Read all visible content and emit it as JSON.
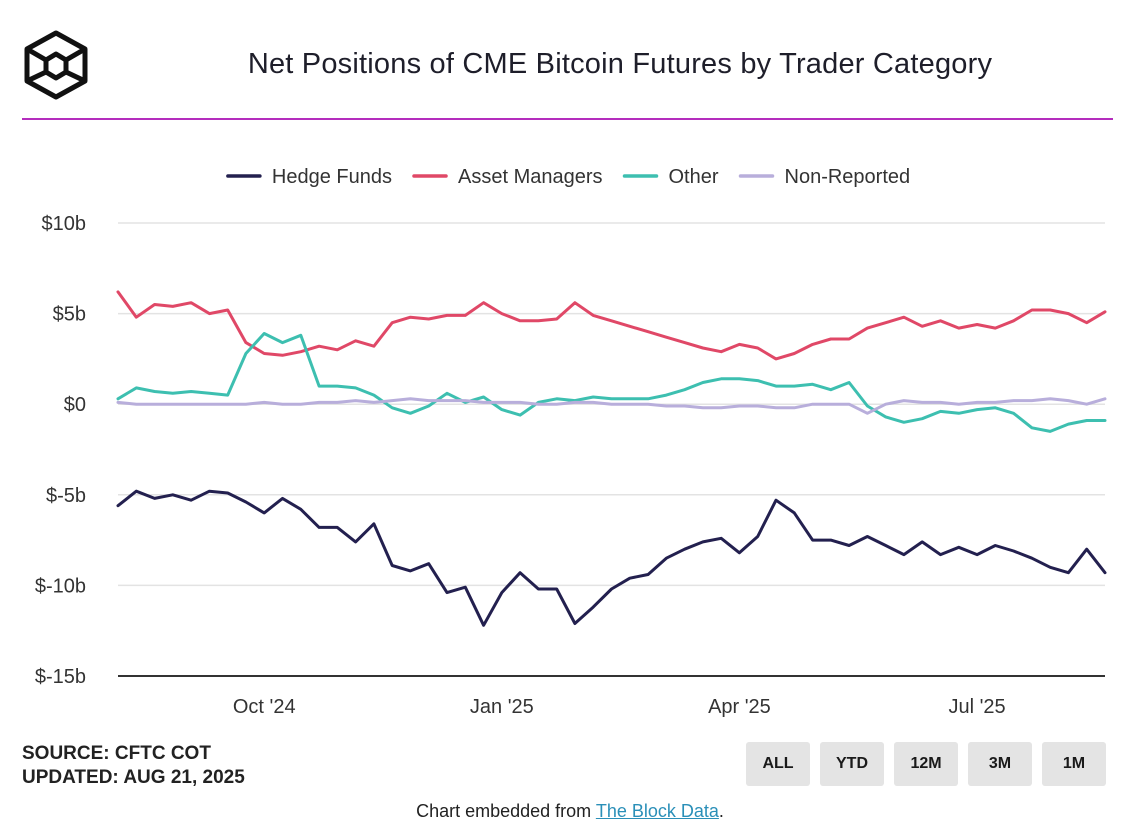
{
  "header": {
    "title": "Net Positions of CME Bitcoin Futures by Trader Category"
  },
  "chart_data": {
    "type": "line",
    "title": "Net Positions of CME Bitcoin Futures by Trader Category",
    "xlabel": "",
    "ylabel": "",
    "ylim": [
      -15,
      10
    ],
    "y_ticks": [
      10,
      5,
      0,
      -5,
      -10,
      -15
    ],
    "y_tick_labels": [
      "$10b",
      "$5b",
      "$0",
      "$-5b",
      "$-10b",
      "$-15b"
    ],
    "x_tick_labels": [
      "Oct '24",
      "Jan '25",
      "Apr '25",
      "Jul '25"
    ],
    "x_tick_positions": [
      8,
      21,
      34,
      47
    ],
    "legend_position": "top-center",
    "grid": true,
    "x_count": 55,
    "series": [
      {
        "name": "Hedge Funds",
        "color": "#23204f",
        "values": [
          -5.6,
          -4.8,
          -5.2,
          -5.0,
          -5.3,
          -4.8,
          -4.9,
          -5.4,
          -6.0,
          -5.2,
          -5.8,
          -6.8,
          -6.8,
          -7.6,
          -6.6,
          -8.9,
          -9.2,
          -8.8,
          -10.4,
          -10.1,
          -12.2,
          -10.4,
          -9.3,
          -10.2,
          -10.2,
          -12.1,
          -11.2,
          -10.2,
          -9.6,
          -9.4,
          -8.5,
          -8.0,
          -7.6,
          -7.4,
          -8.2,
          -7.3,
          -5.3,
          -6.0,
          -7.5,
          -7.5,
          -7.8,
          -7.3,
          -7.8,
          -8.3,
          -7.6,
          -8.3,
          -7.9,
          -8.3,
          -7.8,
          -8.1,
          -8.5,
          -9.0,
          -9.3,
          -8.0,
          -9.3
        ]
      },
      {
        "name": "Asset Managers",
        "color": "#e04867",
        "values": [
          6.2,
          4.8,
          5.5,
          5.4,
          5.6,
          5.0,
          5.2,
          3.4,
          2.8,
          2.7,
          2.9,
          3.2,
          3.0,
          3.5,
          3.2,
          4.5,
          4.8,
          4.7,
          4.9,
          4.9,
          5.6,
          5.0,
          4.6,
          4.6,
          4.7,
          5.6,
          4.9,
          4.6,
          4.3,
          4.0,
          3.7,
          3.4,
          3.1,
          2.9,
          3.3,
          3.1,
          2.5,
          2.8,
          3.3,
          3.6,
          3.6,
          4.2,
          4.5,
          4.8,
          4.3,
          4.6,
          4.2,
          4.4,
          4.2,
          4.6,
          5.2,
          5.2,
          5.0,
          4.5,
          5.1
        ]
      },
      {
        "name": "Other",
        "color": "#3dbfb0",
        "values": [
          0.3,
          0.9,
          0.7,
          0.6,
          0.7,
          0.6,
          0.5,
          2.8,
          3.9,
          3.4,
          3.8,
          1.0,
          1.0,
          0.9,
          0.5,
          -0.2,
          -0.5,
          -0.1,
          0.6,
          0.1,
          0.4,
          -0.3,
          -0.6,
          0.1,
          0.3,
          0.2,
          0.4,
          0.3,
          0.3,
          0.3,
          0.5,
          0.8,
          1.2,
          1.4,
          1.4,
          1.3,
          1.0,
          1.0,
          1.1,
          0.8,
          1.2,
          -0.1,
          -0.7,
          -1.0,
          -0.8,
          -0.4,
          -0.5,
          -0.3,
          -0.2,
          -0.5,
          -1.3,
          -1.5,
          -1.1,
          -0.9,
          -0.9
        ]
      },
      {
        "name": "Non-Reported",
        "color": "#b8aedb",
        "values": [
          0.1,
          0.0,
          0.0,
          0.0,
          0.0,
          0.0,
          0.0,
          0.0,
          0.1,
          0.0,
          0.0,
          0.1,
          0.1,
          0.2,
          0.1,
          0.2,
          0.3,
          0.2,
          0.2,
          0.2,
          0.1,
          0.1,
          0.1,
          0.0,
          0.0,
          0.1,
          0.1,
          0.0,
          0.0,
          0.0,
          -0.1,
          -0.1,
          -0.2,
          -0.2,
          -0.1,
          -0.1,
          -0.2,
          -0.2,
          0.0,
          0.0,
          0.0,
          -0.5,
          0.0,
          0.2,
          0.1,
          0.1,
          0.0,
          0.1,
          0.1,
          0.2,
          0.2,
          0.3,
          0.2,
          0.0,
          0.3
        ]
      }
    ]
  },
  "footer": {
    "source": "SOURCE: CFTC COT",
    "updated": "UPDATED: AUG 21, 2025",
    "range_buttons": [
      "ALL",
      "YTD",
      "12M",
      "3M",
      "1M"
    ],
    "embed_prefix": "Chart embedded from ",
    "embed_link": "The Block Data",
    "embed_suffix": "."
  }
}
